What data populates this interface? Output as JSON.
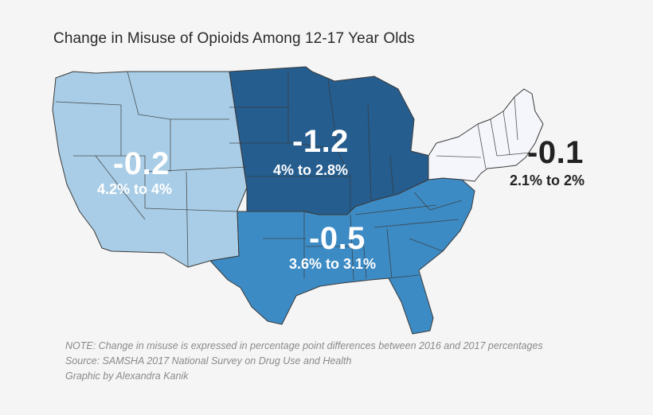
{
  "title": "Change in Misuse of Opioids Among 12-17 Year Olds",
  "regions": {
    "west": {
      "change": "-0.2",
      "range": "4.2% to 4%",
      "color": "#a9cde6"
    },
    "midwest": {
      "change": "-1.2",
      "range": "4% to 2.8%",
      "color": "#255d8e"
    },
    "south": {
      "change": "-0.5",
      "range": "3.6% to 3.1%",
      "color": "#3d8bc4"
    },
    "northeast": {
      "change": "-0.1",
      "range": "2.1% to 2%",
      "color": "#f4f6fb"
    }
  },
  "notes": {
    "note": "NOTE: Change in misuse is expressed in percentage point differences between 2016 and 2017 percentages",
    "source": "Source: SAMSHA 2017 National Survey on Drug Use and Health",
    "credit": "Graphic by Alexandra Kanik"
  }
}
